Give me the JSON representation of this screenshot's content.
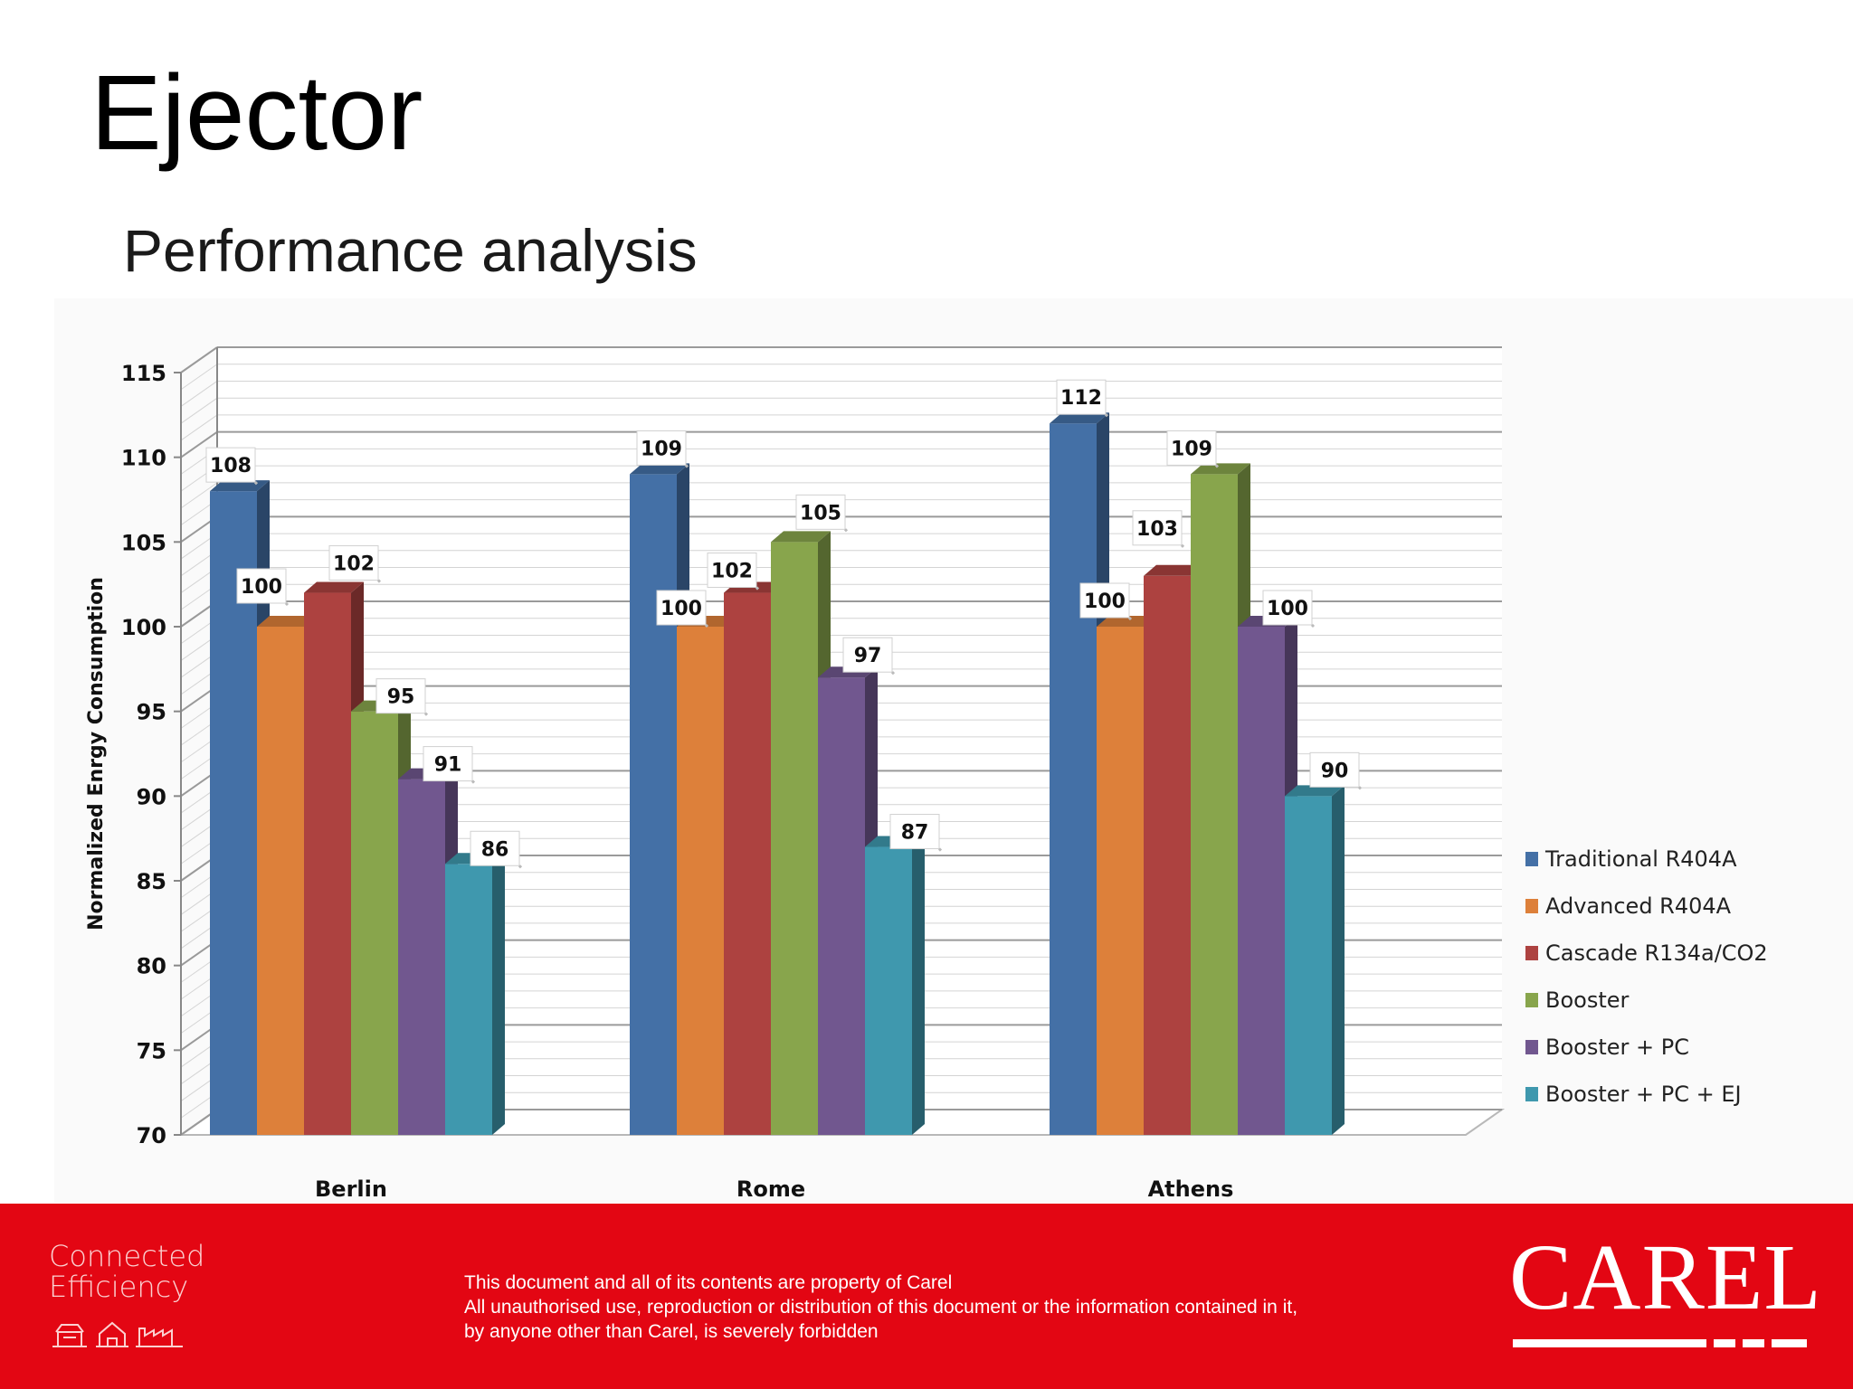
{
  "slide": {
    "title": "Ejector",
    "subtitle": "Performance analysis"
  },
  "chart_data": {
    "type": "bar",
    "title": "Performance analysis",
    "ylabel": "Normalized Enrgy Consumption",
    "xlabel": "",
    "ylim": [
      70,
      115
    ],
    "yticks": [
      115,
      110,
      105,
      100,
      95,
      90,
      85,
      80,
      75,
      70
    ],
    "grid": true,
    "legend_position": "right",
    "categories": [
      "Berlin",
      "Rome",
      "Athens"
    ],
    "series": [
      {
        "name": "Traditional R404A",
        "color": "#4470a6",
        "values": [
          108,
          109,
          112
        ]
      },
      {
        "name": "Advanced R404A",
        "color": "#dd803a",
        "values": [
          100,
          100,
          100
        ]
      },
      {
        "name": "Cascade R134a/CO2",
        "color": "#ad4240",
        "values": [
          102,
          102,
          103
        ]
      },
      {
        "name": "Booster",
        "color": "#88a54c",
        "values": [
          95,
          105,
          109
        ]
      },
      {
        "name": "Booster + PC",
        "color": "#71578f",
        "values": [
          91,
          97,
          100
        ]
      },
      {
        "name": "Booster + PC + EJ",
        "color": "#3f98ae",
        "values": [
          86,
          87,
          90
        ]
      }
    ]
  },
  "footer": {
    "tagline_line1": "Connected",
    "tagline_line2": "Efficiency",
    "icons": [
      "store-icon",
      "house-icon",
      "factory-icon"
    ],
    "notice_line1": "This document and all of its contents are property of Carel",
    "notice_line2": "All unauthorised use, reproduction or distribution of this document or the information contained in it,",
    "notice_line3": "by anyone other than Carel, is severely forbidden",
    "brand": "CAREL",
    "background_color": "#e30613"
  }
}
